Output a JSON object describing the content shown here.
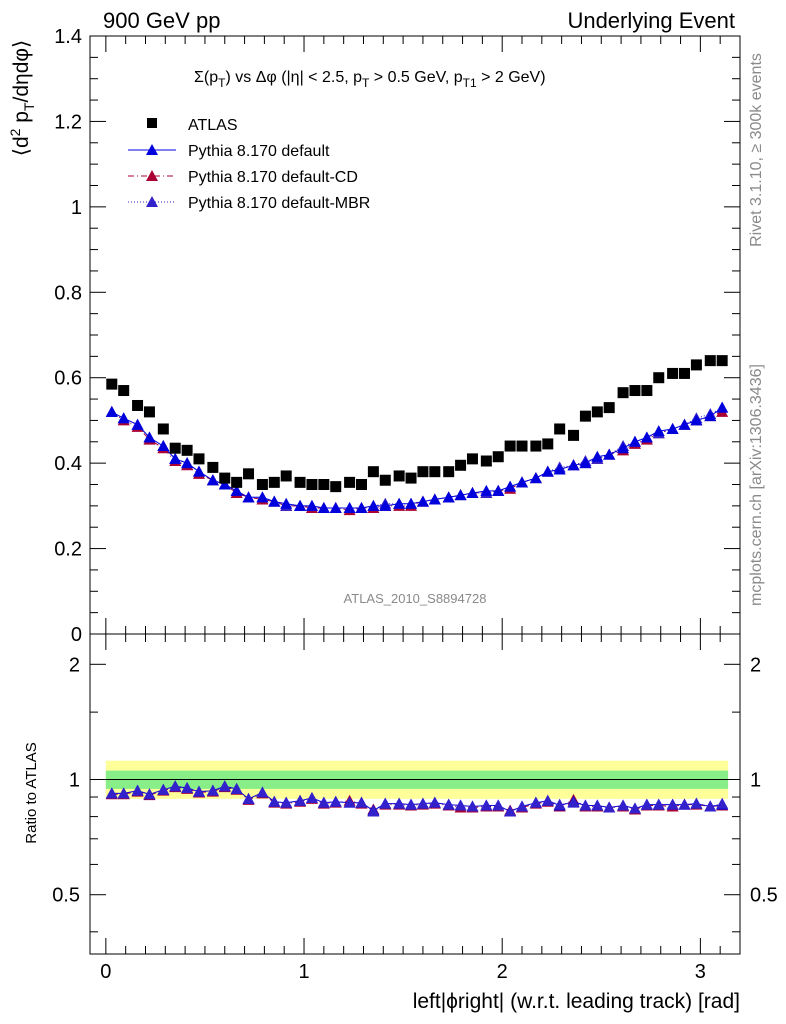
{
  "header": {
    "left": "900 GeV pp",
    "right": "Underlying Event"
  },
  "side": {
    "rivet": "Rivet 3.1.10, ≥ 300k events",
    "mcplots": "mcplots.cern.ch [arXiv:1306.3436]"
  },
  "watermark": "ATLAS_2010_S8894728",
  "colors": {
    "atlas": "#000000",
    "default": "#0000dd",
    "cd": "#aa0033",
    "mbr": "#3322cc",
    "band_inner": "#88ee88",
    "band_outer": "#ffff99"
  },
  "chart_data": [
    {
      "type": "scatter",
      "panel": "main",
      "title": "Σ(p_T) vs Δφ (|η| < 2.5, p_T > 0.5 GeV, p_T1 > 2 GeV)",
      "title_parts": {
        "a": "Σ(p",
        "a_sub": "T",
        "b": ") vs Δφ (|η| < 2.5, p",
        "b_sub": "T",
        "c": " > 0.5 GeV, p",
        "c_sub": "T1",
        "d": " > 2 GeV)"
      },
      "ylabel": "⟨d²p_T/dηdφ⟩",
      "ylabel_parts": {
        "a": "⟨d",
        "sup": "2",
        "b": " p",
        "sub": "T",
        "c": "/dηdφ⟩"
      },
      "xlim": [
        -0.08,
        3.2
      ],
      "ylim": [
        0,
        1.4
      ],
      "y_ticks": [
        "0",
        "0.2",
        "0.4",
        "0.6",
        "0.8",
        "1",
        "1.2",
        "1.4"
      ],
      "legend_position": "top-left",
      "x": [
        0.03,
        0.09,
        0.16,
        0.22,
        0.29,
        0.35,
        0.41,
        0.47,
        0.54,
        0.6,
        0.66,
        0.72,
        0.79,
        0.85,
        0.91,
        0.98,
        1.04,
        1.1,
        1.16,
        1.23,
        1.29,
        1.35,
        1.41,
        1.48,
        1.54,
        1.6,
        1.66,
        1.73,
        1.79,
        1.85,
        1.92,
        1.98,
        2.04,
        2.1,
        2.17,
        2.23,
        2.29,
        2.36,
        2.42,
        2.48,
        2.54,
        2.61,
        2.67,
        2.73,
        2.79,
        2.86,
        2.92,
        2.98,
        3.05,
        3.11
      ],
      "series": [
        {
          "name": "ATLAS",
          "marker": "square",
          "values": [
            0.585,
            0.57,
            0.535,
            0.52,
            0.48,
            0.435,
            0.43,
            0.41,
            0.39,
            0.365,
            0.355,
            0.375,
            0.35,
            0.355,
            0.37,
            0.355,
            0.35,
            0.35,
            0.345,
            0.355,
            0.35,
            0.38,
            0.36,
            0.37,
            0.365,
            0.38,
            0.38,
            0.38,
            0.395,
            0.41,
            0.405,
            0.415,
            0.44,
            0.44,
            0.44,
            0.445,
            0.48,
            0.465,
            0.51,
            0.52,
            0.53,
            0.565,
            0.57,
            0.57,
            0.6,
            0.61,
            0.61,
            0.63,
            0.64,
            0.64
          ]
        },
        {
          "name": "Pythia 8.170 default",
          "marker": "triangle",
          "line": "solid",
          "values": [
            0.52,
            0.505,
            0.49,
            0.46,
            0.44,
            0.41,
            0.4,
            0.38,
            0.36,
            0.35,
            0.335,
            0.32,
            0.32,
            0.31,
            0.305,
            0.3,
            0.3,
            0.295,
            0.295,
            0.295,
            0.295,
            0.3,
            0.3,
            0.305,
            0.305,
            0.31,
            0.315,
            0.32,
            0.325,
            0.33,
            0.335,
            0.335,
            0.345,
            0.355,
            0.365,
            0.38,
            0.385,
            0.395,
            0.4,
            0.415,
            0.42,
            0.435,
            0.45,
            0.46,
            0.475,
            0.48,
            0.49,
            0.5,
            0.51,
            0.53
          ]
        },
        {
          "name": "Pythia 8.170 default-CD",
          "marker": "triangle",
          "line": "dashdot",
          "values": [
            0.52,
            0.5,
            0.485,
            0.455,
            0.435,
            0.405,
            0.395,
            0.375,
            0.36,
            0.35,
            0.33,
            0.32,
            0.315,
            0.31,
            0.3,
            0.3,
            0.295,
            0.295,
            0.295,
            0.29,
            0.295,
            0.295,
            0.3,
            0.3,
            0.3,
            0.31,
            0.315,
            0.32,
            0.325,
            0.33,
            0.33,
            0.335,
            0.34,
            0.355,
            0.365,
            0.38,
            0.385,
            0.395,
            0.4,
            0.41,
            0.42,
            0.43,
            0.445,
            0.455,
            0.47,
            0.48,
            0.49,
            0.5,
            0.51,
            0.52
          ]
        },
        {
          "name": "Pythia 8.170 default-MBR",
          "marker": "triangle",
          "line": "dotted",
          "values": [
            0.52,
            0.505,
            0.49,
            0.46,
            0.44,
            0.41,
            0.4,
            0.38,
            0.36,
            0.35,
            0.335,
            0.32,
            0.32,
            0.31,
            0.3,
            0.3,
            0.3,
            0.295,
            0.295,
            0.295,
            0.295,
            0.3,
            0.305,
            0.305,
            0.305,
            0.31,
            0.315,
            0.32,
            0.325,
            0.33,
            0.33,
            0.335,
            0.345,
            0.355,
            0.365,
            0.38,
            0.39,
            0.395,
            0.405,
            0.41,
            0.42,
            0.44,
            0.45,
            0.46,
            0.47,
            0.48,
            0.49,
            0.505,
            0.515,
            0.53
          ]
        }
      ]
    },
    {
      "type": "line",
      "panel": "ratio",
      "ylabel": "Ratio to ATLAS",
      "xlabel": "left|ϕright| (w.r.t. leading track) [rad]",
      "xlim": [
        -0.08,
        3.2
      ],
      "ylim": [
        0.35,
        2.4
      ],
      "log_y": true,
      "y_ticks": [
        "0.5",
        "1",
        "2"
      ],
      "x_ticks": [
        "0",
        "1",
        "2",
        "3"
      ],
      "band_inner": [
        0.945,
        1.055
      ],
      "band_outer": [
        0.89,
        1.12
      ],
      "reference": 1,
      "series": [
        {
          "name": "Pythia 8.170 default",
          "values": [
            0.92,
            0.92,
            0.935,
            0.915,
            0.94,
            0.96,
            0.95,
            0.93,
            0.935,
            0.96,
            0.945,
            0.89,
            0.925,
            0.875,
            0.87,
            0.88,
            0.895,
            0.87,
            0.875,
            0.87,
            0.87,
            0.83,
            0.865,
            0.865,
            0.86,
            0.865,
            0.87,
            0.86,
            0.855,
            0.85,
            0.855,
            0.855,
            0.825,
            0.85,
            0.87,
            0.88,
            0.855,
            0.875,
            0.855,
            0.855,
            0.845,
            0.855,
            0.84,
            0.86,
            0.86,
            0.86,
            0.86,
            0.865,
            0.85,
            0.86
          ]
        },
        {
          "name": "Pythia 8.170 default-CD",
          "values": [
            0.915,
            0.915,
            0.93,
            0.91,
            0.935,
            0.955,
            0.945,
            0.925,
            0.93,
            0.955,
            0.94,
            0.885,
            0.92,
            0.87,
            0.865,
            0.875,
            0.89,
            0.865,
            0.87,
            0.88,
            0.865,
            0.835,
            0.86,
            0.86,
            0.855,
            0.86,
            0.865,
            0.855,
            0.845,
            0.845,
            0.85,
            0.85,
            0.83,
            0.845,
            0.865,
            0.875,
            0.85,
            0.885,
            0.85,
            0.85,
            0.845,
            0.85,
            0.835,
            0.855,
            0.855,
            0.85,
            0.86,
            0.86,
            0.85,
            0.855
          ]
        },
        {
          "name": "Pythia 8.170 default-MBR",
          "values": [
            0.92,
            0.92,
            0.935,
            0.915,
            0.94,
            0.96,
            0.95,
            0.93,
            0.935,
            0.96,
            0.945,
            0.89,
            0.925,
            0.875,
            0.87,
            0.88,
            0.895,
            0.87,
            0.875,
            0.87,
            0.87,
            0.825,
            0.865,
            0.865,
            0.86,
            0.865,
            0.87,
            0.86,
            0.855,
            0.85,
            0.855,
            0.855,
            0.825,
            0.85,
            0.87,
            0.88,
            0.86,
            0.87,
            0.855,
            0.855,
            0.845,
            0.855,
            0.84,
            0.86,
            0.86,
            0.86,
            0.86,
            0.865,
            0.85,
            0.865
          ]
        }
      ]
    }
  ]
}
